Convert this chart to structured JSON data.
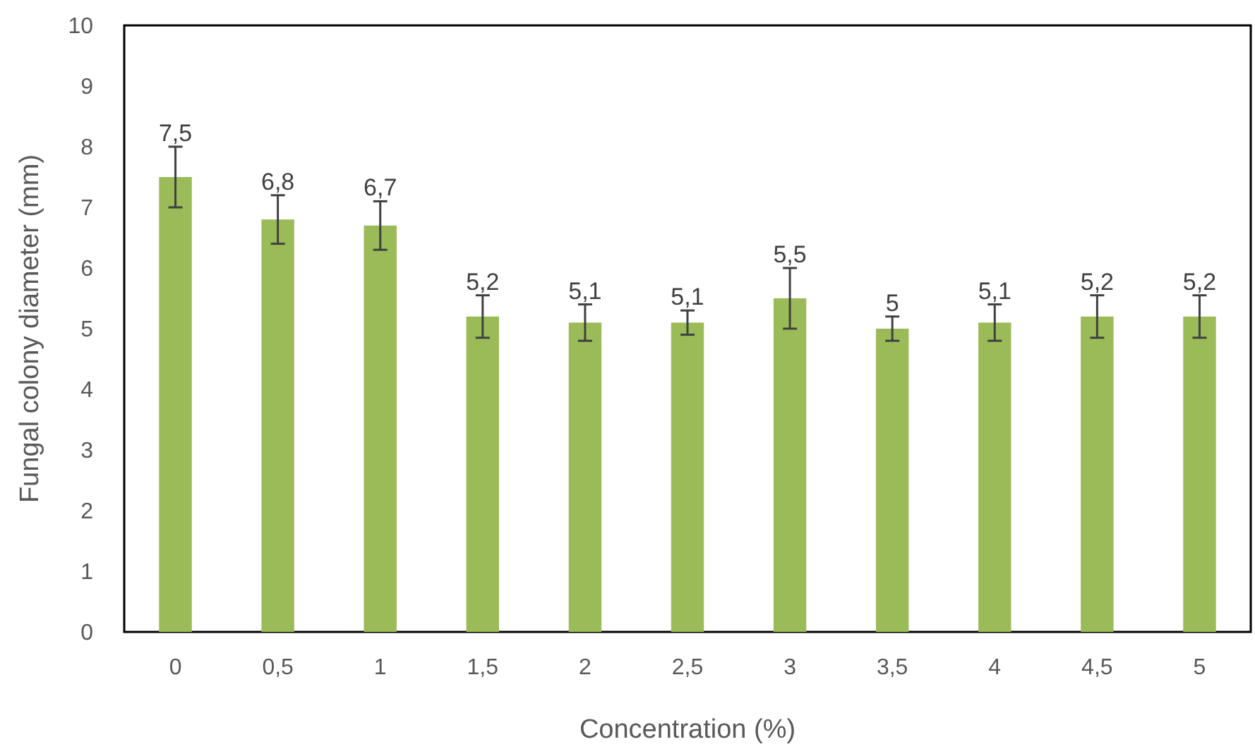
{
  "chart_data": {
    "type": "bar",
    "xlabel": "Concentration (%)",
    "ylabel": "Fungal colony diameter (mm)",
    "categories": [
      "0",
      "0,5",
      "1",
      "1,5",
      "2",
      "2,5",
      "3",
      "3,5",
      "4",
      "4,5",
      "5"
    ],
    "values": [
      7.5,
      6.8,
      6.7,
      5.2,
      5.1,
      5.1,
      5.5,
      5,
      5.1,
      5.2,
      5.2
    ],
    "value_labels": [
      "7,5",
      "6,8",
      "6,7",
      "5,2",
      "5,1",
      "5,1",
      "5,5",
      "5",
      "5,1",
      "5,2",
      "5,2"
    ],
    "errors": [
      0.5,
      0.4,
      0.4,
      0.35,
      0.3,
      0.2,
      0.5,
      0.2,
      0.3,
      0.35,
      0.35
    ],
    "color": "#9bbb59",
    "ylim": [
      0,
      10
    ],
    "yticks": [
      0,
      1,
      2,
      3,
      4,
      5,
      6,
      7,
      8,
      9,
      10
    ],
    "grid": false
  }
}
